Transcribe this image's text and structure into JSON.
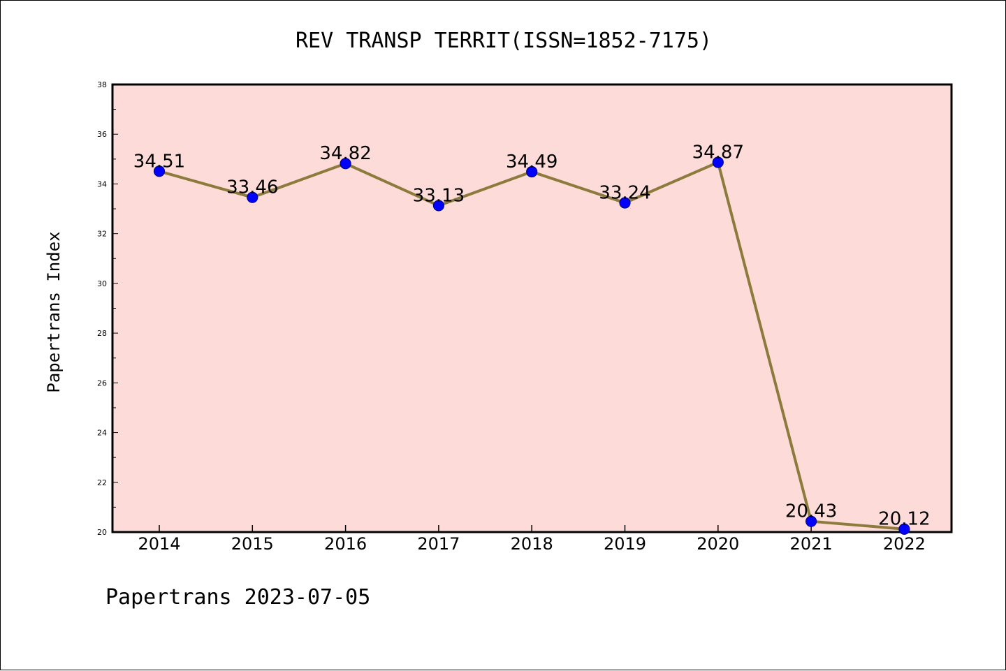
{
  "chart_data": {
    "type": "line",
    "title": "REV TRANSP TERRIT(ISSN=1852-7175)",
    "xlabel": "",
    "ylabel": "Papertrans Index",
    "categories": [
      "2014",
      "2015",
      "2016",
      "2017",
      "2018",
      "2019",
      "2020",
      "2021",
      "2022"
    ],
    "series": [
      {
        "values": [
          34.51,
          33.46,
          34.82,
          33.13,
          34.49,
          33.24,
          34.87,
          20.43,
          20.12
        ],
        "labels": [
          "34.51",
          "33.46",
          "34.82",
          "33.13",
          "34.49",
          "33.24",
          "34.87",
          "20.43",
          "20.12"
        ]
      }
    ],
    "ylim": [
      20,
      38
    ],
    "yticks": [
      "20",
      "22",
      "24",
      "26",
      "28",
      "30",
      "32",
      "34",
      "36",
      "38"
    ],
    "grid": false,
    "colors": {
      "plot_background": "#fddbd8",
      "line": "#8c7b3c",
      "marker": "#0000ff",
      "marker_edge": "#00008b"
    },
    "footer": "Papertrans 2023-07-05"
  }
}
